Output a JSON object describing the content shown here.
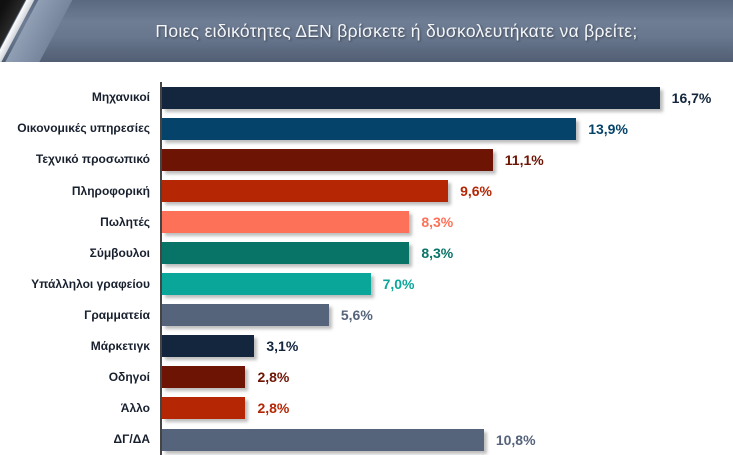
{
  "title": "Ποιες ειδικότητες ΔΕΝ βρίσκετε ή δυσκολευτήκατε να βρείτε;",
  "colors": {
    "band_top": "#6e7d94",
    "band_bottom": "#515e73",
    "axis_line": "#454545",
    "category_text": "#18202e",
    "background": "#ffffff"
  },
  "chart_data": {
    "type": "bar",
    "orientation": "horizontal",
    "title": "Ποιες ειδικότητες ΔΕΝ βρίσκετε ή δυσκολευτήκατε να βρείτε;",
    "categories": [
      "Μηχανικοί",
      "Οικονομικές υπηρεσίες",
      "Τεχνικό προσωπικό",
      "Πληροφορική",
      "Πωλητές",
      "Σύμβουλοι",
      "Υπάλληλοι γραφείου",
      "Γραμματεία",
      "Μάρκετιγκ",
      "Οδηγοί",
      "Άλλο",
      "ΔΓ/ΔΑ"
    ],
    "values": [
      16.7,
      13.9,
      11.1,
      9.6,
      8.3,
      8.3,
      7.0,
      5.6,
      3.1,
      2.8,
      2.8,
      10.8
    ],
    "value_labels": [
      "16,7%",
      "13,9%",
      "11,1%",
      "9,6%",
      "8,3%",
      "8,3%",
      "7,0%",
      "5,6%",
      "3,1%",
      "2,8%",
      "2,8%",
      "10,8%"
    ],
    "bar_colors": [
      "#13263d",
      "#05436a",
      "#6e1404",
      "#b42604",
      "#fd7158",
      "#087468",
      "#0ba69a",
      "#56647b",
      "#13263d",
      "#6e1404",
      "#b42604",
      "#56647b"
    ],
    "xlabel": "",
    "ylabel": "",
    "xlim": [
      0,
      19
    ],
    "grid": false,
    "legend": false,
    "value_label_position": "end"
  }
}
